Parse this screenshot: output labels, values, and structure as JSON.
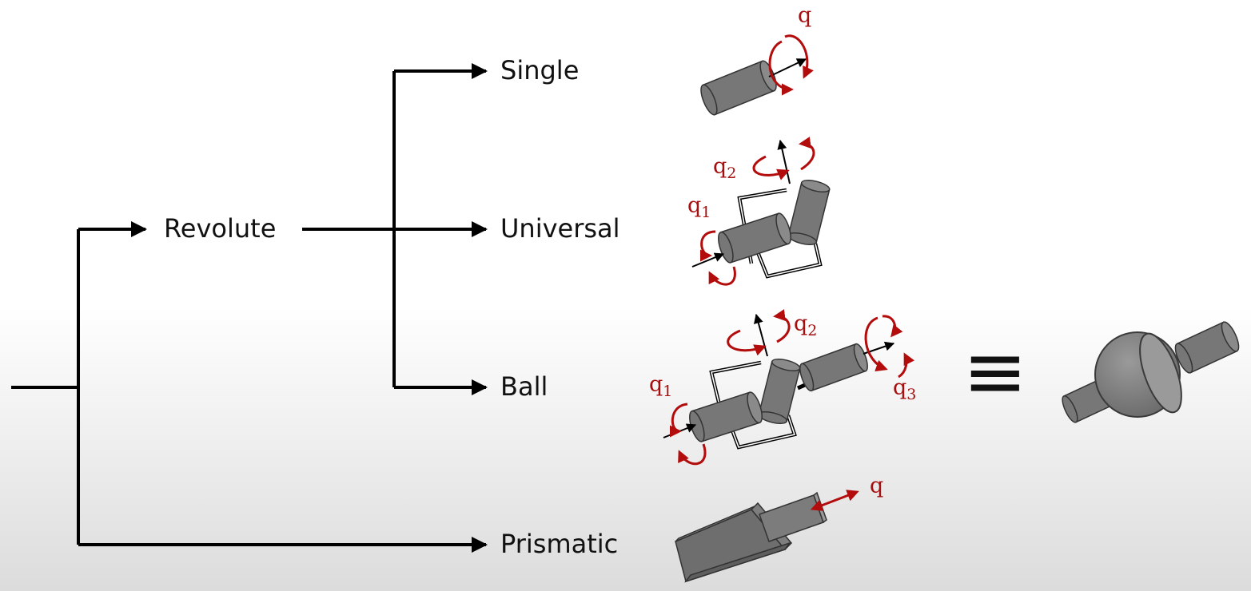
{
  "tree": {
    "root": "",
    "nodes": {
      "revolute": "Revolute",
      "single": "Single",
      "universal": "Universal",
      "ball": "Ball",
      "prismatic": "Prismatic"
    }
  },
  "joints": {
    "single": {
      "q": "q"
    },
    "universal": {
      "q1": "q",
      "q1_sub": "1",
      "q2": "q",
      "q2_sub": "2"
    },
    "ball": {
      "q1": "q",
      "q1_sub": "1",
      "q2": "q",
      "q2_sub": "2",
      "q3": "q",
      "q3_sub": "3"
    },
    "prismatic": {
      "q": "q"
    }
  },
  "equivalence_symbol": "≡",
  "colors": {
    "rotation_arrow": "#b30c0c",
    "label": "#a50f0f",
    "cylinder": "#7a7a7a"
  }
}
